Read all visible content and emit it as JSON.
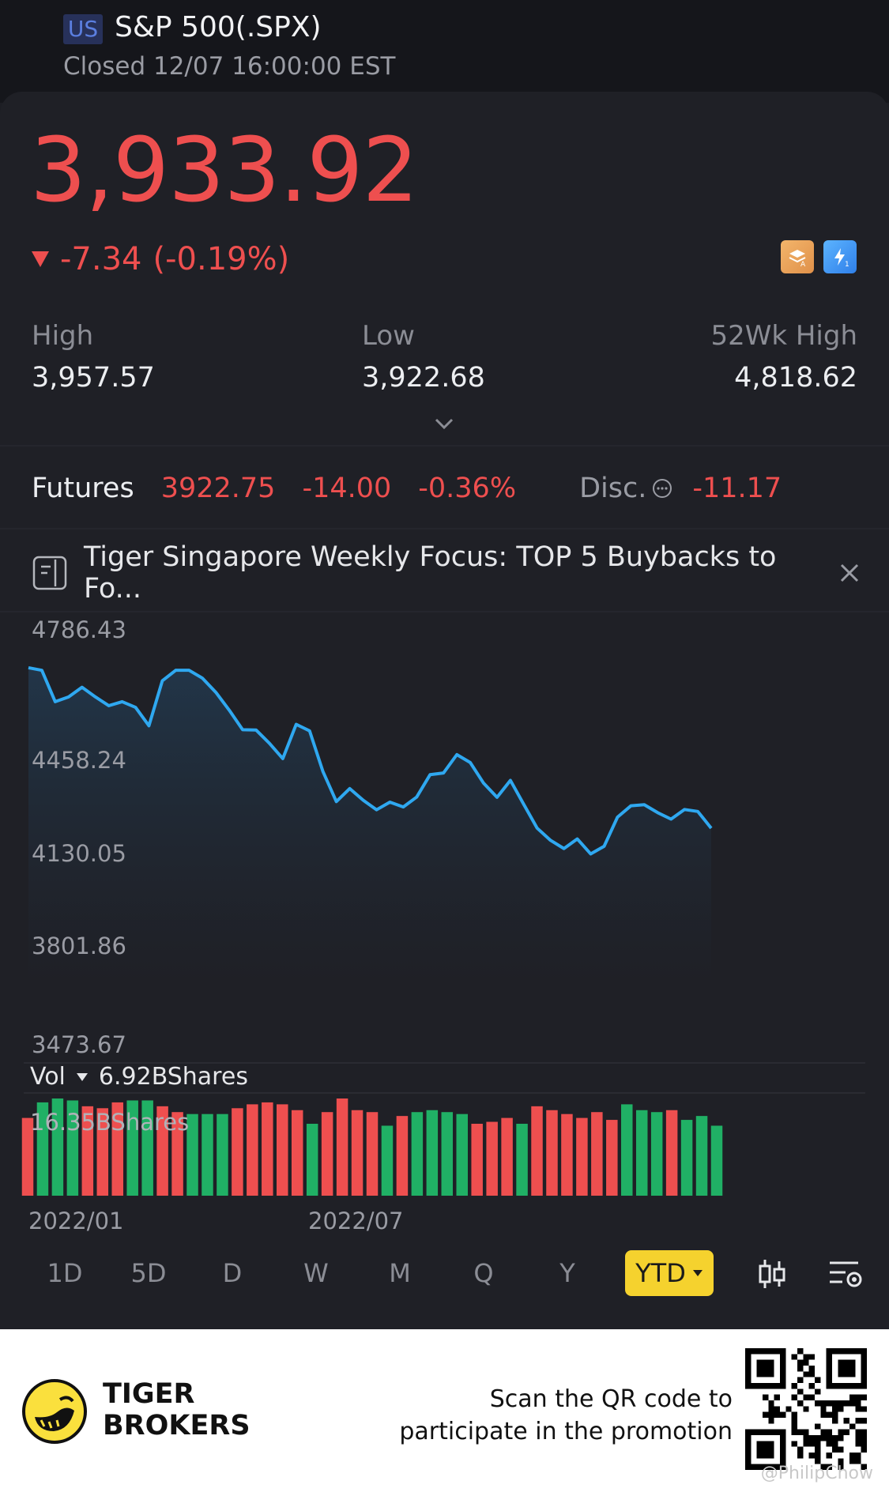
{
  "header": {
    "market": "US",
    "title": "S&P 500(.SPX)",
    "status": "Closed 12/07 16:00:00 EST"
  },
  "quote": {
    "price": "3,933.92",
    "change": "-7.34",
    "change_pct": "(-0.19%)",
    "badge_a_icon": "layers-a-icon",
    "badge_b_icon": "lightning-1-icon"
  },
  "stats": {
    "high_label": "High",
    "high_value": "3,957.57",
    "low_label": "Low",
    "low_value": "3,922.68",
    "wk52_label": "52Wk High",
    "wk52_value": "4,818.62"
  },
  "futures": {
    "label": "Futures",
    "price": "3922.75",
    "change": "-14.00",
    "change_pct": "-0.36%",
    "disc_label": "Disc.",
    "disc_value": "-11.17"
  },
  "news": {
    "text": "Tiger Singapore Weekly Focus: TOP 5 Buybacks to Fo..."
  },
  "chart": {
    "y_labels": [
      "4786.43",
      "4458.24",
      "4130.05",
      "3801.86",
      "3473.67"
    ],
    "x_labels": [
      "2022/01",
      "2022/07"
    ],
    "vol_label": "Vol",
    "vol_value": "6.92BShares",
    "vol_max_label": "16.35BShares",
    "line_color": "#2fa8f0",
    "up_color": "#20b065",
    "down_color": "#ee4f4f"
  },
  "chart_data": {
    "type": "line",
    "ylim": [
      3473.67,
      4786.43
    ],
    "price_series": [
      4605,
      4596,
      4485,
      4502,
      4536,
      4502,
      4471,
      4485,
      4465,
      4400,
      4559,
      4596,
      4596,
      4568,
      4518,
      4455,
      4386,
      4385,
      4338,
      4284,
      4405,
      4382,
      4238,
      4132,
      4178,
      4137,
      4103,
      4130,
      4113,
      4148,
      4227,
      4233,
      4298,
      4270,
      4197,
      4147,
      4207,
      4122,
      4038,
      3995,
      3966,
      4000,
      3947,
      3974,
      4077,
      4117,
      4121,
      4093,
      4070,
      4104,
      4097,
      4038
    ],
    "volume_red_green": [
      "d",
      "u",
      "u",
      "u",
      "d",
      "d",
      "d",
      "u",
      "u",
      "d",
      "d",
      "u",
      "u",
      "u",
      "d",
      "d",
      "d",
      "d",
      "d",
      "u",
      "d",
      "d",
      "d",
      "d",
      "u",
      "d",
      "u",
      "u",
      "u",
      "u",
      "d",
      "d",
      "d",
      "u",
      "d",
      "d",
      "d",
      "d",
      "d",
      "d",
      "u",
      "u",
      "u",
      "d",
      "u",
      "u",
      "u"
    ],
    "volumes": [
      80,
      96,
      100,
      98,
      92,
      90,
      96,
      98,
      98,
      92,
      86,
      84,
      84,
      84,
      90,
      94,
      96,
      94,
      88,
      74,
      86,
      100,
      88,
      86,
      72,
      82,
      86,
      88,
      86,
      84,
      74,
      76,
      80,
      74,
      92,
      88,
      84,
      80,
      86,
      78,
      94,
      88,
      86,
      88,
      78,
      82,
      72
    ]
  },
  "ranges": [
    "1D",
    "5D",
    "D",
    "W",
    "M",
    "Q",
    "Y",
    "YTD"
  ],
  "footer": {
    "brand_line1": "TIGER",
    "brand_line2": "BROKERS",
    "promo_line1": "Scan the QR code to",
    "promo_line2": "participate in the promotion",
    "watermark": "@PhilipChow"
  }
}
